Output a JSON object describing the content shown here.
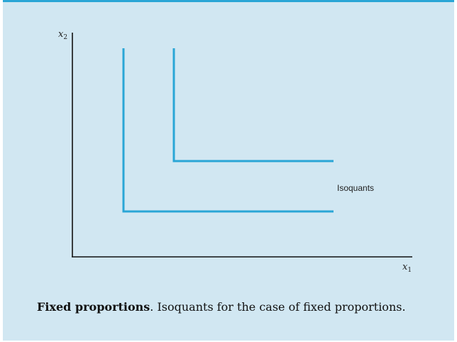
{
  "diagram": {
    "x_axis_label": "x",
    "x_axis_subscript": "1",
    "y_axis_label": "x",
    "y_axis_subscript": "2",
    "annotation": "Isoquants",
    "line_color": "#2aa6d6",
    "axis_color": "#111111",
    "background_color": "#d1e7f2"
  },
  "caption": {
    "bold": "Fixed proportions",
    "rest": ".  Isoquants for the case of fixed proportions."
  }
}
